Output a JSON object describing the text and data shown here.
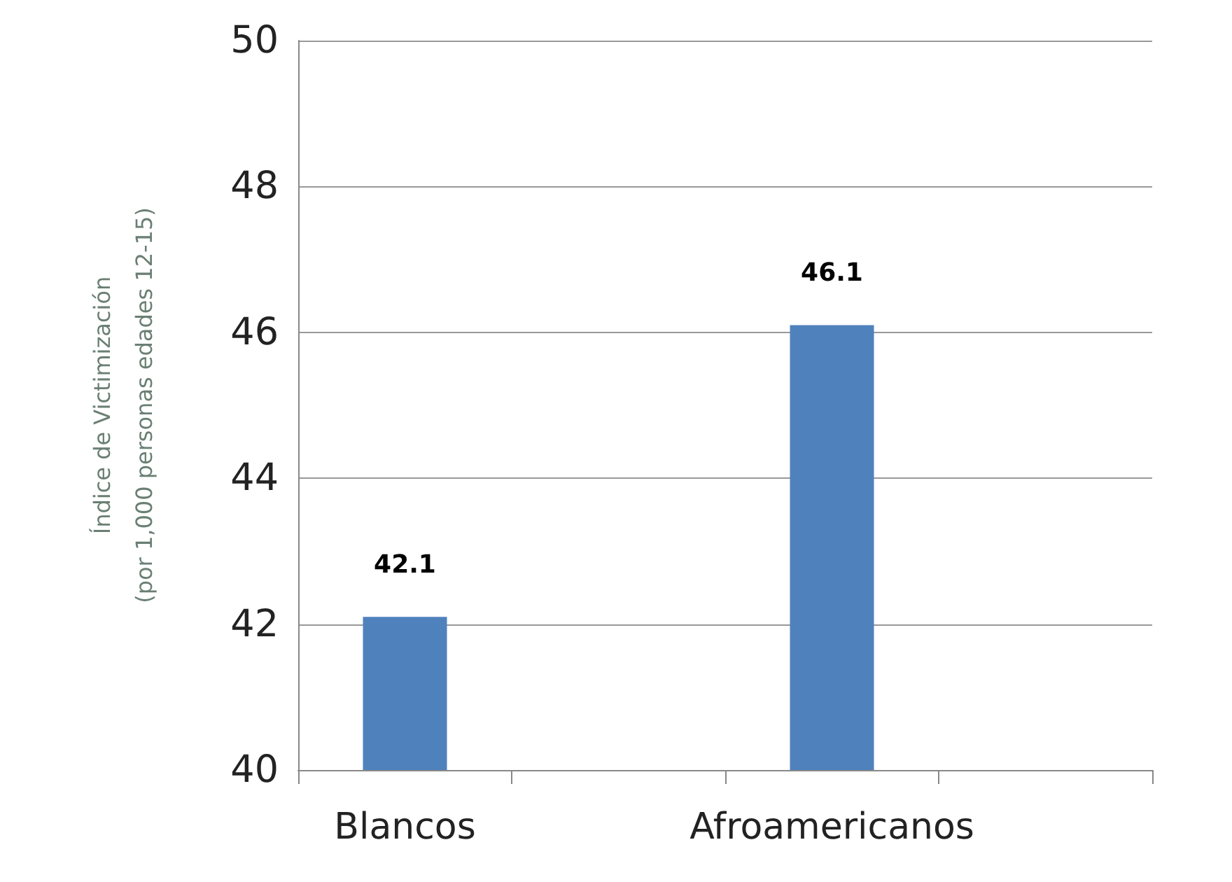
{
  "chart_data": {
    "type": "bar",
    "ylabel": "Índice de Victimización\n(por 1,000 personas edades 12-15)",
    "categories": [
      "Blancos",
      null,
      "Afroamericanos",
      null
    ],
    "values": [
      42.1,
      null,
      46.1,
      null
    ],
    "color": "#4f81bd",
    "ylim": [
      40,
      50
    ],
    "yticks": [
      40,
      42,
      44,
      46,
      48,
      50
    ],
    "grid": "y",
    "data_labels": true
  }
}
